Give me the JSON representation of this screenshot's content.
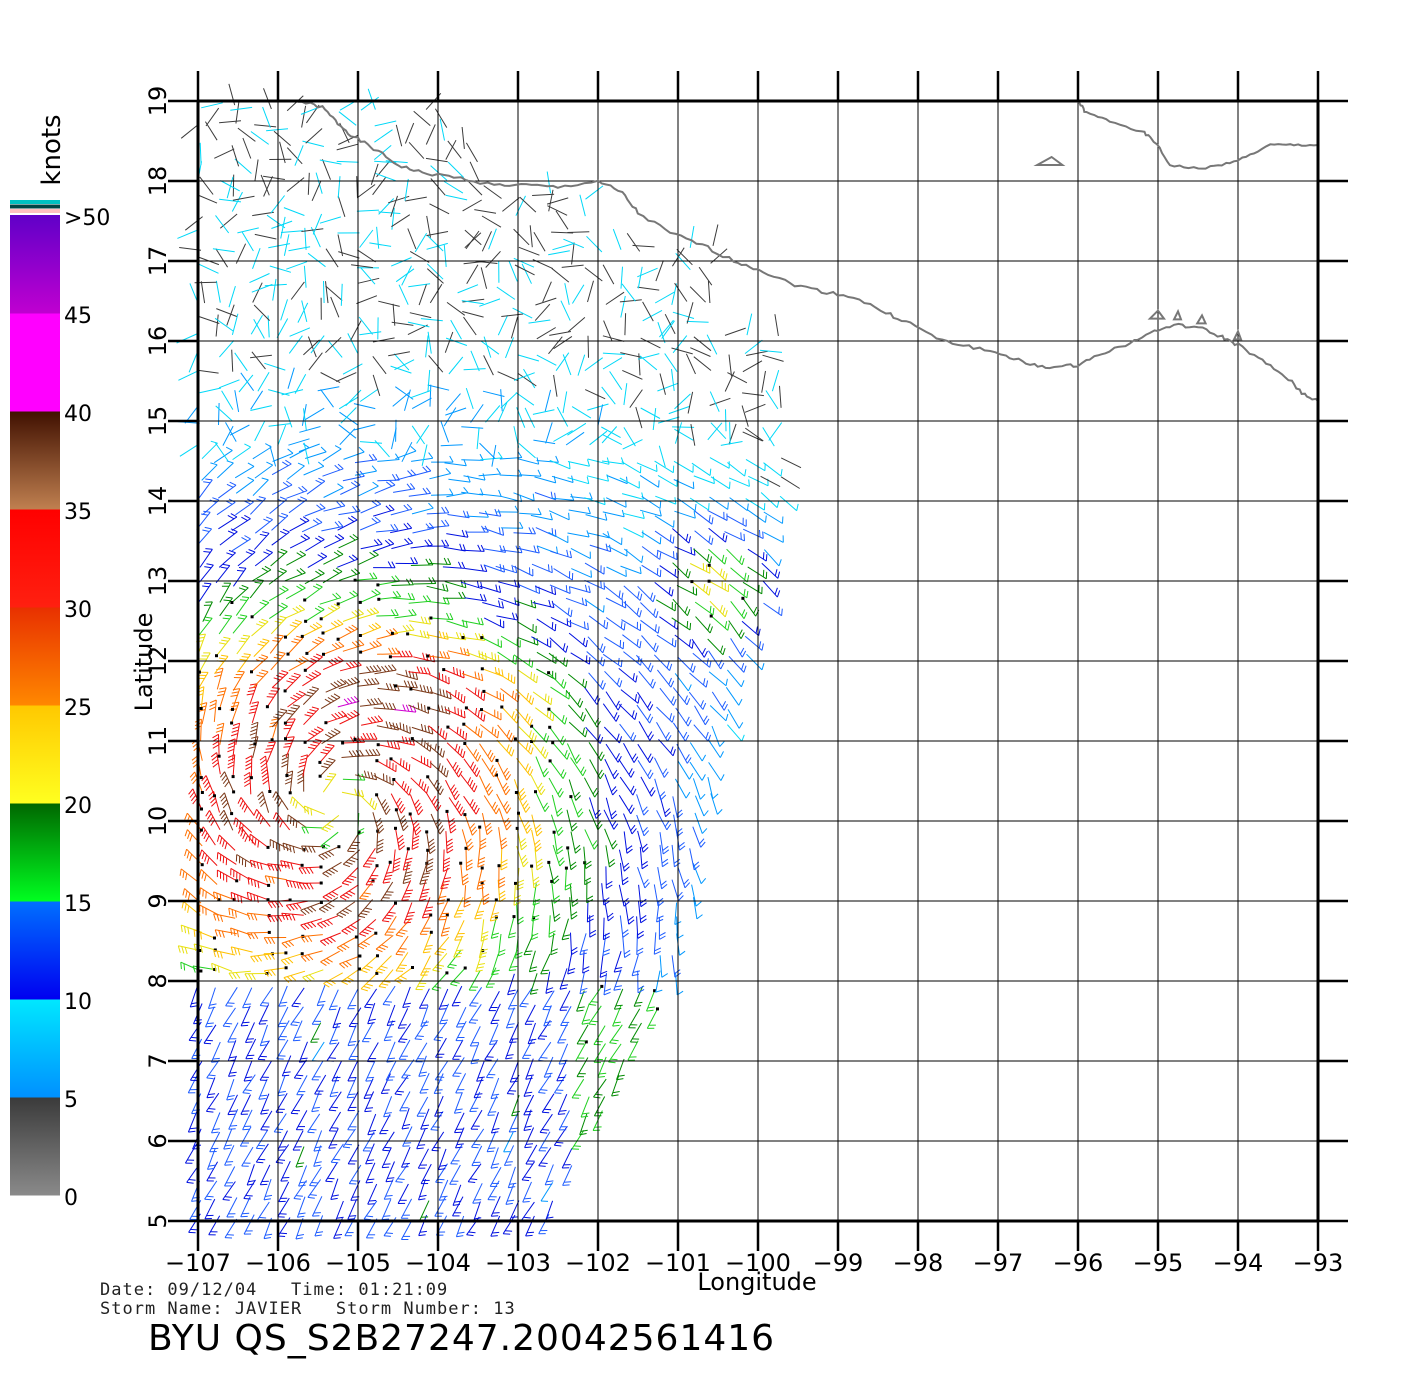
{
  "map": {
    "lon_range": [
      -107,
      -93
    ],
    "lat_range": [
      5,
      19
    ],
    "lon_ticks": [
      -107,
      -106,
      -105,
      -104,
      -103,
      -102,
      -101,
      -100,
      -99,
      -98,
      -97,
      -96,
      -95,
      -94,
      -93
    ],
    "lat_ticks": [
      5,
      6,
      7,
      8,
      9,
      10,
      11,
      12,
      13,
      14,
      15,
      16,
      17,
      18,
      19
    ],
    "xlabel": "Longitude",
    "ylabel": "Latitude",
    "coastline_color": "#777777",
    "grid_color": "#000000"
  },
  "colorbar": {
    "unit_label": "knots",
    "labels": [
      "0",
      "5",
      "10",
      "15",
      "20",
      "25",
      "30",
      "35",
      "40",
      "45",
      ">50"
    ],
    "bands": [
      {
        "from": 0,
        "to": 5,
        "top": "#3a3a3a",
        "bottom": "#8a8a8a"
      },
      {
        "from": 5,
        "to": 10,
        "top": "#00e8ff",
        "bottom": "#0090ff"
      },
      {
        "from": 10,
        "to": 15,
        "top": "#0070ff",
        "bottom": "#0000f0"
      },
      {
        "from": 15,
        "to": 20,
        "top": "#006600",
        "bottom": "#00ff20"
      },
      {
        "from": 20,
        "to": 25,
        "top": "#ffc800",
        "bottom": "#ffff20"
      },
      {
        "from": 25,
        "to": 30,
        "top": "#e83000",
        "bottom": "#ff8800"
      },
      {
        "from": 30,
        "to": 35,
        "top": "#ff0000",
        "bottom": "#ff2010"
      },
      {
        "from": 35,
        "to": 40,
        "top": "#401000",
        "bottom": "#c08050"
      },
      {
        "from": 40,
        "to": 45,
        "top": "#ff00ff",
        "bottom": "#ff00ff"
      },
      {
        "from": 45,
        "to": 50,
        "top": "#6000c8",
        "bottom": "#c000d0"
      }
    ],
    "cap_colors": [
      "#00c0c0",
      "#004444",
      "#ffc0c0"
    ]
  },
  "storm_center": {
    "lon": -105.3,
    "lat": 10.2
  },
  "info": {
    "date_line": "Date: 09/12/04   Time: 01:21:09",
    "storm_line": "Storm Name: JAVIER   Storm Number: 13",
    "file_id": "BYU QS_S2B27247.20042561416"
  }
}
